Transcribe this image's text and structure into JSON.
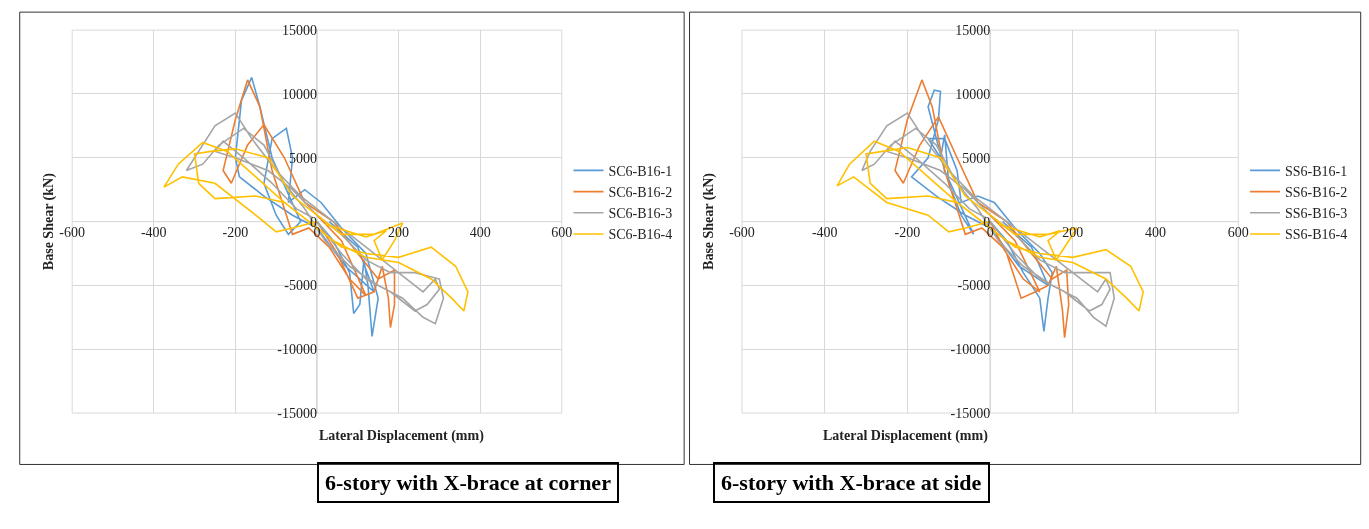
{
  "chart_data": [
    {
      "type": "line",
      "title": "6-story with X-brace at corner",
      "xlabel": "Lateral Displacement (mm)",
      "ylabel": "Base Shear (kN)",
      "xlim": [
        -600,
        600
      ],
      "ylim": [
        -15000,
        15000
      ],
      "xticks": [
        -600,
        -400,
        -200,
        0,
        200,
        400,
        600
      ],
      "yticks": [
        -15000,
        -10000,
        -5000,
        0,
        5000,
        10000,
        15000
      ],
      "grid": true,
      "legend": "right",
      "series": [
        {
          "name": "SC6-B16-1",
          "color": "#5b9bd5",
          "x": [
            0,
            40,
            80,
            90,
            105,
            115,
            125,
            135,
            150,
            120,
            60,
            10,
            -30,
            -70,
            -60,
            -75,
            -110,
            -130,
            -100,
            -70,
            -40,
            -110,
            -140,
            -160,
            -185,
            -200,
            -190,
            -130,
            -60,
            0,
            70,
            140,
            100,
            30
          ],
          "values": [
            0,
            -1500,
            -4000,
            -7200,
            -6500,
            -3000,
            -5000,
            -9000,
            -6000,
            -2500,
            -500,
            1500,
            2500,
            1500,
            5000,
            7300,
            6500,
            3000,
            500,
            -1000,
            0,
            5000,
            9000,
            11300,
            9500,
            5000,
            3500,
            2000,
            500,
            -500,
            -3500,
            -5500,
            -2000,
            0
          ]
        },
        {
          "name": "SC6-B16-2",
          "color": "#ed7d31",
          "x": [
            0,
            50,
            100,
            140,
            160,
            175,
            180,
            190,
            190,
            150,
            100,
            40,
            -30,
            -80,
            -130,
            -170,
            -210,
            -230,
            -200,
            -170,
            -140,
            -110,
            -80,
            -60,
            -20,
            30,
            80,
            120,
            60,
            0
          ],
          "values": [
            0,
            -2500,
            -6000,
            -5500,
            -3500,
            -6000,
            -8300,
            -6500,
            -3800,
            -4500,
            -2500,
            0,
            1500,
            5000,
            7600,
            6000,
            3000,
            4000,
            8000,
            11100,
            9000,
            4000,
            1000,
            -1000,
            -500,
            -2000,
            -4500,
            -5800,
            -1500,
            500
          ]
        },
        {
          "name": "SC6-B16-3",
          "color": "#a5a5a5",
          "x": [
            0,
            60,
            120,
            180,
            240,
            270,
            300,
            290,
            260,
            220,
            160,
            100,
            40,
            -40,
            -100,
            -160,
            -200,
            -250,
            -290,
            -320,
            -280,
            -240,
            -180,
            -130,
            -80,
            -30,
            20,
            80,
            150,
            210,
            260,
            290,
            310,
            300,
            240,
            180,
            120,
            60,
            0,
            -60,
            -120,
            -200,
            -250,
            -230,
            -180,
            -110,
            -50,
            -10
          ],
          "values": [
            0,
            -2500,
            -4500,
            -5500,
            -7000,
            -6500,
            -5300,
            -4500,
            -5500,
            -4500,
            -3000,
            -1500,
            0,
            2000,
            4000,
            6500,
            8500,
            7500,
            5500,
            4000,
            4500,
            6000,
            7300,
            6000,
            3000,
            1000,
            -1500,
            -3500,
            -5000,
            -6000,
            -7500,
            -8000,
            -6000,
            -4500,
            -4000,
            -4000,
            -3000,
            -1000,
            500,
            2500,
            4000,
            5000,
            5500,
            6300,
            5000,
            3000,
            1000,
            300
          ]
        },
        {
          "name": "SC6-B16-4",
          "color": "#ffc000",
          "x": [
            0,
            -60,
            -100,
            -150,
            -250,
            -330,
            -375,
            -340,
            -280,
            -220,
            -150,
            -80,
            0,
            60,
            120,
            200,
            280,
            340,
            370,
            360,
            330,
            280,
            200,
            120,
            40,
            -20,
            -80,
            -150,
            -250,
            -290,
            -300,
            -260,
            -200,
            -120,
            -60,
            0,
            60,
            140,
            210,
            190,
            160,
            140,
            170,
            120,
            50,
            20
          ],
          "values": [
            0,
            -500,
            -800,
            500,
            3000,
            3500,
            2700,
            4500,
            6200,
            5500,
            3500,
            1500,
            -500,
            -2000,
            -2500,
            -2800,
            -2000,
            -3500,
            -5500,
            -7000,
            -6000,
            -4500,
            -3200,
            -2800,
            -1500,
            0,
            1500,
            2000,
            1800,
            3000,
            5300,
            5500,
            5700,
            5000,
            2000,
            500,
            -1000,
            -1000,
            -100,
            -1500,
            -3000,
            -1500,
            -700,
            -1200,
            -500,
            -200
          ]
        }
      ]
    },
    {
      "type": "line",
      "title": "6-story with X-brace at side",
      "xlabel": "Lateral Displacement (mm)",
      "ylabel": "Base Shear (kN)",
      "xlim": [
        -600,
        600
      ],
      "ylim": [
        -15000,
        15000
      ],
      "xticks": [
        -600,
        -400,
        -200,
        0,
        200,
        400,
        600
      ],
      "yticks": [
        -15000,
        -10000,
        -5000,
        0,
        5000,
        10000,
        15000
      ],
      "grid": true,
      "legend": "right",
      "series": [
        {
          "name": "SS6-B16-1",
          "color": "#5b9bd5",
          "x": [
            0,
            40,
            80,
            100,
            120,
            130,
            140,
            150,
            120,
            60,
            10,
            -30,
            -70,
            -80,
            -110,
            -150,
            -120,
            -110,
            -100,
            -70,
            -40,
            -110,
            -150,
            -135,
            -120,
            -125,
            -150,
            -190,
            -130,
            -60,
            0,
            70,
            140,
            100,
            30
          ],
          "values": [
            0,
            -1500,
            -4000,
            -5000,
            -6000,
            -8600,
            -6000,
            -4000,
            -2500,
            -500,
            1500,
            2000,
            1500,
            4000,
            6500,
            6500,
            5000,
            6800,
            3000,
            500,
            -1000,
            4000,
            9000,
            10300,
            10200,
            8000,
            5000,
            3500,
            2000,
            500,
            -500,
            -3500,
            -5000,
            -2000,
            0
          ]
        },
        {
          "name": "SS6-B16-2",
          "color": "#ed7d31",
          "x": [
            0,
            40,
            75,
            110,
            140,
            160,
            175,
            180,
            190,
            185,
            150,
            100,
            40,
            -30,
            -80,
            -125,
            -170,
            -210,
            -230,
            -200,
            -165,
            -140,
            -110,
            -80,
            -60,
            -20,
            30,
            80,
            120,
            60,
            0
          ],
          "values": [
            0,
            -2500,
            -6000,
            -5500,
            -5000,
            -3500,
            -7000,
            -9100,
            -6500,
            -3800,
            -4500,
            -2500,
            0,
            1500,
            5000,
            8200,
            6000,
            3000,
            4000,
            8000,
            11100,
            9000,
            4000,
            1000,
            -1000,
            -500,
            -2000,
            -4500,
            -5500,
            -1500,
            500
          ]
        },
        {
          "name": "SS6-B16-3",
          "color": "#a5a5a5",
          "x": [
            0,
            60,
            120,
            180,
            240,
            270,
            290,
            280,
            260,
            220,
            160,
            100,
            40,
            -40,
            -100,
            -160,
            -200,
            -250,
            -290,
            -310,
            -280,
            -240,
            -180,
            -130,
            -80,
            -30,
            20,
            80,
            150,
            210,
            250,
            280,
            300,
            290,
            240,
            180,
            120,
            60,
            0,
            -60,
            -120,
            -200,
            -250,
            -230,
            -180,
            -110,
            -50,
            -10
          ],
          "values": [
            0,
            -2500,
            -4500,
            -5500,
            -7000,
            -6500,
            -5300,
            -4500,
            -5500,
            -4500,
            -3000,
            -1500,
            0,
            2000,
            4000,
            6500,
            8500,
            7500,
            5500,
            4000,
            4500,
            6000,
            7300,
            6000,
            3000,
            1000,
            -1500,
            -3500,
            -5000,
            -6000,
            -7500,
            -8200,
            -6000,
            -4000,
            -4000,
            -4000,
            -3000,
            -1000,
            500,
            2500,
            4000,
            5000,
            5500,
            6300,
            5000,
            3000,
            1000,
            300
          ]
        },
        {
          "name": "SS6-B16-4",
          "color": "#ffc000",
          "x": [
            0,
            -60,
            -100,
            -150,
            -250,
            -330,
            -370,
            -340,
            -280,
            -220,
            -150,
            -80,
            0,
            60,
            120,
            200,
            280,
            340,
            370,
            360,
            330,
            280,
            200,
            120,
            40,
            -20,
            -80,
            -150,
            -250,
            -290,
            -300,
            -260,
            -200,
            -120,
            -60,
            0,
            60,
            140,
            210,
            190,
            160,
            140,
            170,
            120,
            50,
            20
          ],
          "values": [
            0,
            -500,
            -800,
            500,
            1500,
            3500,
            2800,
            4500,
            6300,
            5500,
            3500,
            1500,
            -500,
            -2000,
            -2500,
            -2800,
            -2200,
            -3500,
            -5500,
            -7000,
            -6000,
            -4500,
            -3200,
            -2800,
            -1500,
            0,
            1500,
            2000,
            1800,
            3000,
            5300,
            5500,
            5800,
            5000,
            2000,
            500,
            -1000,
            -1000,
            -500,
            -1500,
            -3000,
            -1500,
            -700,
            -1200,
            -500,
            -200
          ]
        }
      ]
    }
  ]
}
